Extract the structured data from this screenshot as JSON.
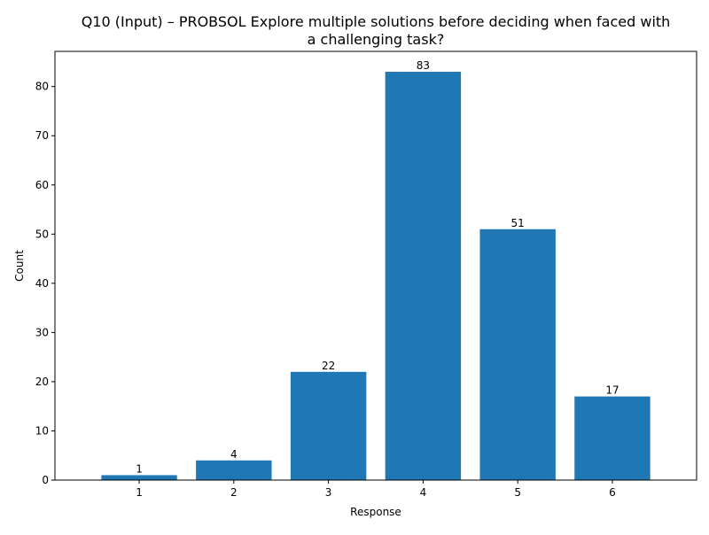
{
  "chart_data": {
    "type": "bar",
    "title": "Q10 (Input) – PROBSOL Explore multiple solutions before deciding when faced with a challenging task?",
    "title_lines": [
      "Q10 (Input) – PROBSOL Explore multiple solutions before deciding when faced with",
      "a challenging task?"
    ],
    "xlabel": "Response",
    "ylabel": "Count",
    "categories": [
      "1",
      "2",
      "3",
      "4",
      "5",
      "6"
    ],
    "values": [
      1,
      4,
      22,
      83,
      51,
      17
    ],
    "data_labels": [
      "1",
      "4",
      "22",
      "83",
      "51",
      "17"
    ],
    "ylim": [
      0,
      87.15
    ],
    "yticks": [
      0,
      10,
      20,
      30,
      40,
      50,
      60,
      70,
      80
    ],
    "ytick_labels": [
      "0",
      "10",
      "20",
      "30",
      "40",
      "50",
      "60",
      "70",
      "80"
    ],
    "bar_color": "#1f77b4",
    "grid": false,
    "legend": "none"
  }
}
